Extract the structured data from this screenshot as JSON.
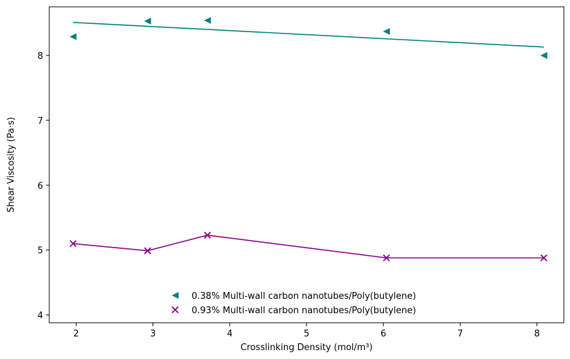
{
  "chart_data": {
    "type": "scatter",
    "title": "",
    "xlabel": "Crosslinking Density (mol/m³)",
    "ylabel": "Shear Viscosity (Pa·s)",
    "xlim": [
      1.65,
      8.35
    ],
    "ylim": [
      3.88,
      8.75
    ],
    "xticks": [
      "2",
      "3",
      "4",
      "5",
      "6",
      "7",
      "8"
    ],
    "yticks": [
      "4",
      "5",
      "6",
      "7",
      "8"
    ],
    "grid": false,
    "legend_position": "lower center",
    "series": [
      {
        "name": "0.38% Multi-wall carbon nanotubes/Poly(butylene)",
        "marker": "triangle-left",
        "color": "#008080",
        "x": [
          1.96,
          2.93,
          3.71,
          6.04,
          8.09
        ],
        "y": [
          8.29,
          8.53,
          8.54,
          8.37,
          8.0
        ],
        "line": {
          "kind": "linear-fit",
          "x": [
            1.96,
            8.09
          ],
          "y": [
            8.51,
            8.13
          ]
        }
      },
      {
        "name": "0.93% Multi-wall carbon nanotubes/Poly(butylene)",
        "marker": "x",
        "color": "#8B008B",
        "x": [
          1.96,
          2.93,
          3.71,
          6.04,
          8.09
        ],
        "y": [
          5.1,
          4.99,
          5.23,
          4.88,
          4.88
        ],
        "line": {
          "kind": "connected",
          "x": [
            1.96,
            2.93,
            3.71,
            6.04,
            8.09
          ],
          "y": [
            5.1,
            4.99,
            5.23,
            4.88,
            4.88
          ]
        }
      }
    ]
  }
}
